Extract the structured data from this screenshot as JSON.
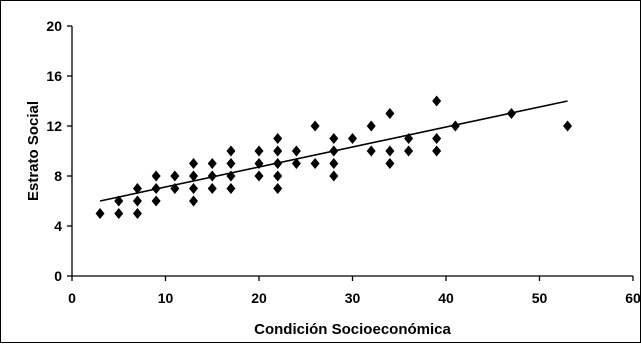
{
  "chart_data": {
    "type": "scatter",
    "title": "",
    "xlabel": "Condición Socioeconómica",
    "ylabel": "Estrato  Social",
    "xlim": [
      0,
      60
    ],
    "ylim": [
      0,
      20
    ],
    "xticks": [
      0,
      10,
      20,
      30,
      40,
      50,
      60
    ],
    "yticks": [
      0,
      4,
      8,
      12,
      16,
      20
    ],
    "grid": false,
    "legend": "none",
    "marker": "diamond",
    "marker_color": "#000000",
    "series": [
      {
        "points": [
          [
            3,
            5
          ],
          [
            5,
            5
          ],
          [
            5,
            6
          ],
          [
            7,
            5
          ],
          [
            7,
            6
          ],
          [
            7,
            7
          ],
          [
            9,
            6
          ],
          [
            9,
            7
          ],
          [
            9,
            8
          ],
          [
            11,
            7
          ],
          [
            11,
            8
          ],
          [
            13,
            6
          ],
          [
            13,
            7
          ],
          [
            13,
            8
          ],
          [
            13,
            9
          ],
          [
            15,
            7
          ],
          [
            15,
            8
          ],
          [
            15,
            9
          ],
          [
            17,
            7
          ],
          [
            17,
            8
          ],
          [
            17,
            9
          ],
          [
            17,
            10
          ],
          [
            20,
            8
          ],
          [
            20,
            9
          ],
          [
            20,
            10
          ],
          [
            22,
            7
          ],
          [
            22,
            8
          ],
          [
            22,
            9
          ],
          [
            22,
            10
          ],
          [
            22,
            11
          ],
          [
            24,
            9
          ],
          [
            24,
            10
          ],
          [
            26,
            9
          ],
          [
            26,
            12
          ],
          [
            28,
            8
          ],
          [
            28,
            9
          ],
          [
            28,
            10
          ],
          [
            28,
            11
          ],
          [
            30,
            11
          ],
          [
            32,
            10
          ],
          [
            32,
            12
          ],
          [
            34,
            9
          ],
          [
            34,
            10
          ],
          [
            34,
            13
          ],
          [
            36,
            10
          ],
          [
            36,
            11
          ],
          [
            39,
            10
          ],
          [
            39,
            11
          ],
          [
            39,
            14
          ],
          [
            41,
            12
          ],
          [
            47,
            13
          ],
          [
            53,
            12
          ]
        ]
      }
    ],
    "trendline": {
      "x": [
        3,
        53
      ],
      "y": [
        6,
        14
      ]
    }
  }
}
